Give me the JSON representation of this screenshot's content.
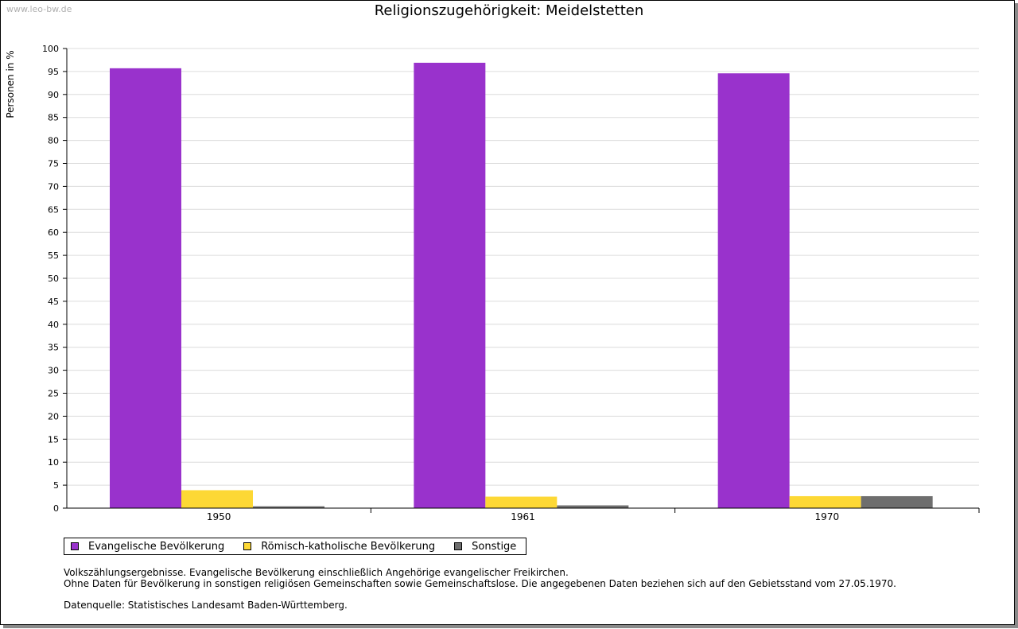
{
  "watermark": "www.leo-bw.de",
  "chart_data": {
    "type": "bar",
    "title": "Religionszugehörigkeit: Meidelstetten",
    "xlabel": "",
    "ylabel": "Personen in %",
    "categories": [
      "1950",
      "1961",
      "1970"
    ],
    "series": [
      {
        "name": "Evangelische Bevölkerung",
        "color": "#9932cc",
        "values": [
          95.7,
          96.9,
          94.6
        ]
      },
      {
        "name": "Römisch-katholische Bevölkerung",
        "color": "#fdd835",
        "values": [
          3.9,
          2.5,
          2.6
        ]
      },
      {
        "name": "Sonstige",
        "color": "#6e6e6e",
        "values": [
          0.4,
          0.6,
          2.6
        ]
      }
    ],
    "ylim": [
      0,
      100
    ],
    "yticks": [
      0,
      5,
      10,
      15,
      20,
      25,
      30,
      35,
      40,
      45,
      50,
      55,
      60,
      65,
      70,
      75,
      80,
      85,
      90,
      95,
      100
    ],
    "grid": true,
    "legend": "bottom-left"
  },
  "notes": {
    "line1": "Volkszählungsergebnisse. Evangelische Bevölkerung einschließlich Angehörige evangelischer Freikirchen.",
    "line2": "Ohne Daten für Bevölkerung in sonstigen religiösen Gemeinschaften sowie Gemeinschaftslose. Die angegebenen Daten beziehen sich auf den Gebietsstand vom 27.05.1970.",
    "source": "Datenquelle: Statistisches Landesamt Baden-Württemberg."
  }
}
